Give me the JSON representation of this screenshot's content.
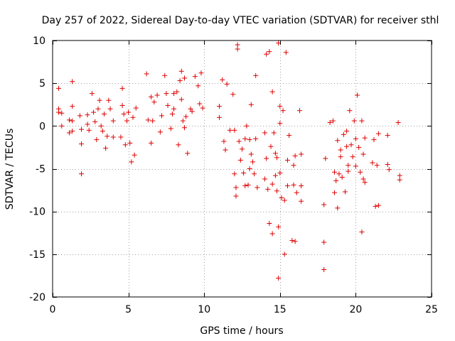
{
  "chart_data": {
    "type": "scatter",
    "title": "Day 257 of 2022, Sidereal Day-to-day VTEC variation (SDTVAR) for receiver sthl",
    "xlabel": "GPS time / hours",
    "ylabel": "SDTVAR / TECUs",
    "xlim": [
      0,
      25
    ],
    "ylim": [
      -20,
      10
    ],
    "xticks": [
      0,
      5,
      10,
      15,
      20,
      25
    ],
    "yticks": [
      -20,
      -15,
      -10,
      -5,
      0,
      5,
      10
    ],
    "xtick_labels": [
      "0",
      "5",
      "10",
      "15",
      "20",
      "25"
    ],
    "ytick_labels": [
      "-20",
      "-15",
      "-10",
      "-5",
      "0",
      "5",
      "10"
    ],
    "grid": true,
    "marker": "+",
    "color": "#e00000",
    "series": [
      {
        "name": "sthl",
        "points": [
          [
            0.4,
            4.4
          ],
          [
            0.4,
            2.0
          ],
          [
            0.4,
            1.6
          ],
          [
            0.6,
            1.5
          ],
          [
            0.6,
            0.0
          ],
          [
            1.1,
            0.7
          ],
          [
            1.1,
            -0.8
          ],
          [
            1.3,
            5.2
          ],
          [
            1.3,
            2.3
          ],
          [
            1.3,
            0.6
          ],
          [
            1.3,
            -0.6
          ],
          [
            1.8,
            1.2
          ],
          [
            1.9,
            -0.4
          ],
          [
            1.9,
            -2.1
          ],
          [
            1.9,
            -5.6
          ],
          [
            2.3,
            1.3
          ],
          [
            2.3,
            0.2
          ],
          [
            2.4,
            -0.5
          ],
          [
            2.6,
            3.8
          ],
          [
            2.7,
            1.6
          ],
          [
            2.8,
            0.5
          ],
          [
            2.9,
            -1.6
          ],
          [
            3.0,
            2.0
          ],
          [
            3.1,
            3.0
          ],
          [
            3.2,
            0.0
          ],
          [
            3.3,
            -0.6
          ],
          [
            3.4,
            1.4
          ],
          [
            3.5,
            -2.6
          ],
          [
            3.6,
            -1.2
          ],
          [
            3.7,
            3.0
          ],
          [
            3.8,
            2.0
          ],
          [
            4.0,
            -1.3
          ],
          [
            4.0,
            0.6
          ],
          [
            4.5,
            -1.3
          ],
          [
            4.6,
            4.4
          ],
          [
            4.6,
            2.4
          ],
          [
            4.7,
            1.4
          ],
          [
            4.8,
            -2.2
          ],
          [
            4.9,
            0.6
          ],
          [
            5.0,
            1.6
          ],
          [
            5.1,
            -2.0
          ],
          [
            5.2,
            -4.2
          ],
          [
            5.3,
            1.0
          ],
          [
            5.4,
            -3.4
          ],
          [
            5.5,
            2.1
          ],
          [
            6.2,
            6.1
          ],
          [
            6.3,
            0.7
          ],
          [
            6.5,
            3.4
          ],
          [
            6.5,
            -2.0
          ],
          [
            6.6,
            0.6
          ],
          [
            6.7,
            2.8
          ],
          [
            6.9,
            3.6
          ],
          [
            7.1,
            -0.7
          ],
          [
            7.2,
            1.2
          ],
          [
            7.4,
            5.9
          ],
          [
            7.5,
            3.8
          ],
          [
            7.6,
            2.4
          ],
          [
            7.8,
            -0.3
          ],
          [
            7.9,
            1.4
          ],
          [
            8.0,
            2.0
          ],
          [
            8.0,
            3.8
          ],
          [
            8.2,
            4.0
          ],
          [
            8.3,
            -2.2
          ],
          [
            8.4,
            5.3
          ],
          [
            8.5,
            6.4
          ],
          [
            8.5,
            3.1
          ],
          [
            8.6,
            0.6
          ],
          [
            8.7,
            -0.2
          ],
          [
            8.7,
            5.6
          ],
          [
            8.8,
            1.1
          ],
          [
            8.9,
            -3.2
          ],
          [
            9.1,
            2.0
          ],
          [
            9.2,
            1.7
          ],
          [
            9.4,
            5.8
          ],
          [
            9.6,
            4.7
          ],
          [
            9.7,
            2.6
          ],
          [
            9.8,
            6.2
          ],
          [
            9.9,
            2.1
          ],
          [
            11.0,
            2.3
          ],
          [
            11.0,
            1.0
          ],
          [
            11.2,
            5.4
          ],
          [
            11.3,
            -1.8
          ],
          [
            11.4,
            -2.8
          ],
          [
            11.5,
            4.9
          ],
          [
            11.7,
            -0.5
          ],
          [
            11.9,
            3.7
          ],
          [
            12.0,
            -0.5
          ],
          [
            12.0,
            -5.6
          ],
          [
            12.1,
            -7.2
          ],
          [
            12.1,
            -8.2
          ],
          [
            12.2,
            9.5
          ],
          [
            12.2,
            9.0
          ],
          [
            12.3,
            -1.8
          ],
          [
            12.4,
            -4.0
          ],
          [
            12.5,
            -2.7
          ],
          [
            12.6,
            -5.5
          ],
          [
            12.7,
            -7.0
          ],
          [
            12.7,
            -1.5
          ],
          [
            12.8,
            0.0
          ],
          [
            12.9,
            -6.9
          ],
          [
            13.0,
            -1.6
          ],
          [
            13.0,
            -5.0
          ],
          [
            13.1,
            -3.3
          ],
          [
            13.1,
            2.5
          ],
          [
            13.2,
            -4.2
          ],
          [
            13.3,
            -5.6
          ],
          [
            13.4,
            5.9
          ],
          [
            13.4,
            -1.5
          ],
          [
            13.5,
            -7.2
          ],
          [
            14.0,
            -0.8
          ],
          [
            14.0,
            -6.2
          ],
          [
            14.1,
            -3.8
          ],
          [
            14.1,
            8.4
          ],
          [
            14.2,
            -7.4
          ],
          [
            14.3,
            8.7
          ],
          [
            14.3,
            -11.4
          ],
          [
            14.4,
            -2.4
          ],
          [
            14.5,
            -12.6
          ],
          [
            14.5,
            4.0
          ],
          [
            14.5,
            -6.8
          ],
          [
            14.6,
            -0.8
          ],
          [
            14.7,
            -3.2
          ],
          [
            14.7,
            -5.8
          ],
          [
            14.8,
            -3.7
          ],
          [
            14.8,
            -7.6
          ],
          [
            14.9,
            -11.8
          ],
          [
            14.9,
            9.7
          ],
          [
            14.9,
            -17.8
          ],
          [
            15.0,
            2.3
          ],
          [
            15.0,
            0.3
          ],
          [
            15.0,
            -5.5
          ],
          [
            15.1,
            -8.4
          ],
          [
            15.2,
            1.8
          ],
          [
            15.3,
            -8.7
          ],
          [
            15.3,
            -15.0
          ],
          [
            15.4,
            8.6
          ],
          [
            15.5,
            -4.0
          ],
          [
            15.5,
            -7.0
          ],
          [
            15.6,
            -1.1
          ],
          [
            15.8,
            -13.4
          ],
          [
            15.9,
            -4.6
          ],
          [
            15.9,
            -6.9
          ],
          [
            16.0,
            -3.5
          ],
          [
            16.0,
            -13.5
          ],
          [
            16.1,
            -7.8
          ],
          [
            16.3,
            1.8
          ],
          [
            16.4,
            -8.8
          ],
          [
            16.4,
            -7.0
          ],
          [
            16.4,
            -3.3
          ],
          [
            17.9,
            -9.2
          ],
          [
            17.9,
            -13.6
          ],
          [
            17.9,
            -16.8
          ],
          [
            18.0,
            -3.8
          ],
          [
            18.3,
            0.4
          ],
          [
            18.5,
            0.6
          ],
          [
            18.6,
            -5.4
          ],
          [
            18.6,
            -7.8
          ],
          [
            18.7,
            -6.4
          ],
          [
            18.8,
            -1.7
          ],
          [
            18.8,
            -9.6
          ],
          [
            18.9,
            -5.6
          ],
          [
            19.0,
            -2.8
          ],
          [
            19.0,
            -3.6
          ],
          [
            19.1,
            -6.0
          ],
          [
            19.2,
            -1.0
          ],
          [
            19.3,
            -7.7
          ],
          [
            19.4,
            -0.6
          ],
          [
            19.4,
            -2.4
          ],
          [
            19.5,
            -4.6
          ],
          [
            19.5,
            -5.3
          ],
          [
            19.6,
            1.8
          ],
          [
            19.7,
            -2.2
          ],
          [
            19.8,
            -3.6
          ],
          [
            19.9,
            0.6
          ],
          [
            20.0,
            -1.5
          ],
          [
            20.0,
            -4.7
          ],
          [
            20.1,
            3.6
          ],
          [
            20.2,
            -2.5
          ],
          [
            20.3,
            -5.4
          ],
          [
            20.4,
            -12.4
          ],
          [
            20.4,
            0.6
          ],
          [
            20.5,
            -3.3
          ],
          [
            20.5,
            -6.2
          ],
          [
            20.6,
            -6.6
          ],
          [
            20.6,
            -1.4
          ],
          [
            21.1,
            -4.3
          ],
          [
            21.2,
            -1.6
          ],
          [
            21.3,
            -9.4
          ],
          [
            21.4,
            -4.6
          ],
          [
            21.5,
            -9.3
          ],
          [
            21.5,
            -0.9
          ],
          [
            22.1,
            -4.5
          ],
          [
            22.1,
            -1.1
          ],
          [
            22.2,
            -5.1
          ],
          [
            22.8,
            0.4
          ],
          [
            22.9,
            -6.3
          ],
          [
            22.9,
            -5.8
          ]
        ]
      }
    ]
  }
}
